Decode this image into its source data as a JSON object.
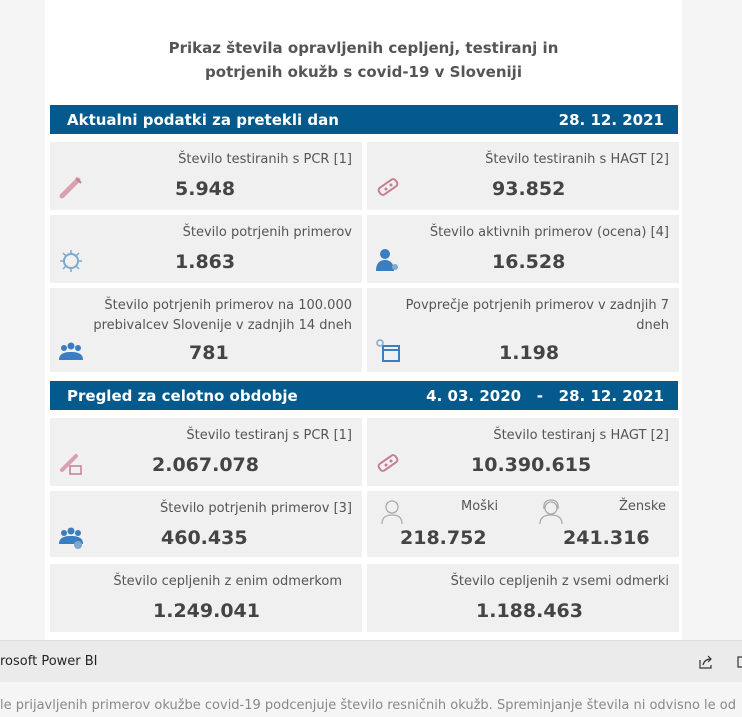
{
  "title_line1": "Prikaz števila opravljenih cepljenj, testiranj in",
  "title_line2": "potrjenih okužb s covid-19 v Sloveniji",
  "daily": {
    "header": "Aktualni podatki za pretekli dan",
    "date": "28. 12. 2021",
    "cards": [
      {
        "label": "Število testiranih s PCR [1]",
        "value": "5.948",
        "icon": "test-tube-icon"
      },
      {
        "label": "Število testiranih s HAGT [2]",
        "value": "93.852",
        "icon": "rapid-test-icon"
      },
      {
        "label": "Število potrjenih primerov",
        "value": "1.863",
        "icon": "virus-icon"
      },
      {
        "label": "Število aktivnih primerov (ocena) [4]",
        "value": "16.528",
        "icon": "person-icon"
      },
      {
        "label": "Število potrjenih primerov na 100.000 prebivalcev Slovenije v zadnjih 14 dneh",
        "value": "781",
        "icon": "group-icon"
      },
      {
        "label": "Povprečje potrjenih primerov v zadnjih 7 dneh",
        "value": "1.198",
        "icon": "calendar-virus-icon"
      }
    ]
  },
  "total": {
    "header": "Pregled za celotno obdobje",
    "date_from": "4. 03. 2020",
    "dash": "-",
    "date_to": "28. 12. 2021",
    "pcr": {
      "label": "Število testiranj s PCR [1]",
      "value": "2.067.078"
    },
    "hagt": {
      "label": "Število testiranj s HAGT [2]",
      "value": "10.390.615"
    },
    "confirmed": {
      "label": "Število potrjenih primerov [3]",
      "value": "460.435"
    },
    "men": {
      "label": "Moški",
      "value": "218.752"
    },
    "women": {
      "label": "Ženske",
      "value": "241.316"
    },
    "one_dose": {
      "label": "Število cepljenih z enim odmerkom",
      "value": "1.249.041"
    },
    "all_doses": {
      "label": "Število cepljenih z vsemi odmerki",
      "value": "1.188.463"
    }
  },
  "footer": {
    "brand": "rosoft Power BI"
  },
  "description": "le prijavljenih primerov okužbe covid-19 podcenjuje število resničnih okužb. Spreminjanje števila ni odvisno le od"
}
